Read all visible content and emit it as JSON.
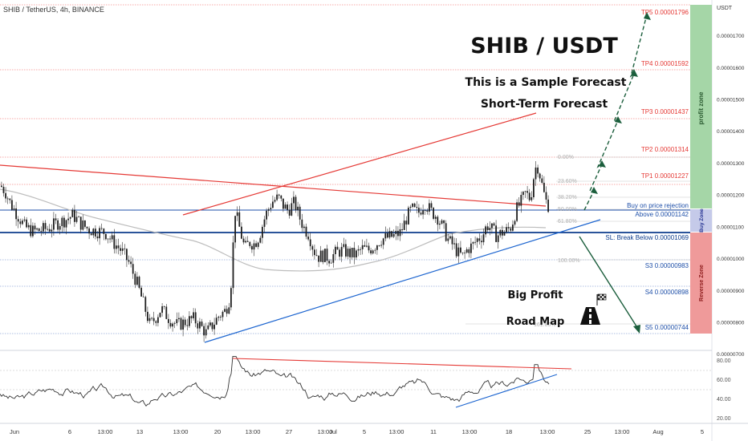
{
  "header": {
    "symbol_line": "SHIB / TetherUS, 4h, BINANCE"
  },
  "overlay": {
    "title": "SHIB / USDT",
    "line1": "This is a Sample Forecast",
    "line2": "Short-Term Forecast",
    "footer_line1": "Big Profit",
    "footer_line2": "Road Map"
  },
  "axis": {
    "unit_label": "USDT",
    "ticks": [
      "0.00001700",
      "0.00001600",
      "0.00001500",
      "0.00001400",
      "0.00001300",
      "0.00001200",
      "0.00001100",
      "0.00001000",
      "0.00000900",
      "0.00000800",
      "0.00000700"
    ],
    "x_ticks": [
      "Jun",
      "6",
      "13:00",
      "13",
      "13:00",
      "20",
      "13:00",
      "27",
      "13:00",
      "Jul",
      "5",
      "13:00",
      "11",
      "13:00",
      "18",
      "13:00",
      "25",
      "13:00",
      "Aug",
      "5"
    ]
  },
  "zones": {
    "profit": "profit zone",
    "buy": "Buy Zone",
    "reverse": "Reverse Zone"
  },
  "levels": {
    "tp5": "TP5 0.00001796",
    "tp4": "TP4 0.00001592",
    "tp3": "TP3 0.00001437",
    "tp2": "TP2 0.00001314",
    "tp1": "TP1 0.00001227",
    "buy1": "Buy on price rejection",
    "buy2": "Above 0.00001142",
    "sl": "SL: Break Below 0.00001069",
    "s3": "S3 0.00000983",
    "s4": "S4 0.00000898",
    "s5": "S5 0.00000744"
  },
  "fib": [
    "0.00%",
    "23.60%",
    "38.20%",
    "50.00%",
    "61.80%",
    "100.00%",
    "161.80%"
  ],
  "rsi_axis": [
    "80.00",
    "60.00",
    "40.00",
    "20.00"
  ],
  "colors": {
    "up": "#26a69a",
    "down": "#ef5350",
    "resistance": "#e53935",
    "support": "#1e66d0",
    "forecast": "#1b5e3c",
    "profit_zone": "#a5d6a7",
    "buy_zone": "#c5cae9",
    "reverse_zone": "#ef9a9a"
  },
  "chart_data": {
    "type": "candlestick",
    "y_scale": "linear",
    "ylim": [
      6.8e-06,
      1.81e-05
    ],
    "price_path": [
      [
        0,
        1.228e-05
      ],
      [
        6,
        1.208e-05
      ],
      [
        12,
        1.172e-05
      ],
      [
        20,
        1.14e-05
      ],
      [
        30,
        1.098e-05
      ],
      [
        40,
        1.085e-05
      ],
      [
        50,
        1.088e-05
      ],
      [
        60,
        1.095e-05
      ],
      [
        70,
        1.11e-05
      ],
      [
        80,
        1.12e-05
      ],
      [
        90,
        1.135e-05
      ],
      [
        100,
        1.108e-05
      ],
      [
        110,
        1.09e-05
      ],
      [
        120,
        1.085e-05
      ],
      [
        130,
        1.082e-05
      ],
      [
        140,
        1.05e-05
      ],
      [
        150,
        1.025e-05
      ],
      [
        160,
        9.85e-06
      ],
      [
        170,
        9.2e-06
      ],
      [
        180,
        8.4e-06
      ],
      [
        186,
        7.9e-06
      ],
      [
        192,
        8.1e-06
      ],
      [
        200,
        8.42e-06
      ],
      [
        210,
        8.1e-06
      ],
      [
        220,
        7.9e-06
      ],
      [
        230,
        8e-06
      ],
      [
        240,
        8.1e-06
      ],
      [
        248,
        7.9e-06
      ],
      [
        256,
        7.65e-06
      ],
      [
        264,
        7.9e-06
      ],
      [
        272,
        8.2e-06
      ],
      [
        280,
        8.35e-06
      ],
      [
        286,
        8.8e-06
      ],
      [
        292,
        1.15e-05
      ],
      [
        298,
        1.09e-05
      ],
      [
        304,
        1.03e-05
      ],
      [
        310,
        1.05e-05
      ],
      [
        316,
        1.045e-05
      ],
      [
        322,
        1.07e-05
      ],
      [
        330,
        1.135e-05
      ],
      [
        338,
        1.178e-05
      ],
      [
        346,
        1.19e-05
      ],
      [
        352,
        1.165e-05
      ],
      [
        358,
        1.15e-05
      ],
      [
        366,
        1.175e-05
      ],
      [
        372,
        1.13e-05
      ],
      [
        378,
        1.095e-05
      ],
      [
        384,
        1.075e-05
      ],
      [
        390,
        1.025e-05
      ],
      [
        396,
        1.005e-05
      ],
      [
        402,
        1.01e-05
      ],
      [
        410,
        1e-05
      ],
      [
        418,
        1.018e-05
      ],
      [
        426,
        1.025e-05
      ],
      [
        434,
        1.015e-05
      ],
      [
        442,
        1.01e-05
      ],
      [
        450,
        1.03e-05
      ],
      [
        458,
        1.025e-05
      ],
      [
        466,
        1.04e-05
      ],
      [
        474,
        1.06e-05
      ],
      [
        482,
        1.065e-05
      ],
      [
        490,
        1.07e-05
      ],
      [
        498,
        1.08e-05
      ],
      [
        506,
        1.128e-05
      ],
      [
        512,
        1.155e-05
      ],
      [
        520,
        1.14e-05
      ],
      [
        528,
        1.175e-05
      ],
      [
        536,
        1.148e-05
      ],
      [
        544,
        1.13e-05
      ],
      [
        552,
        1.09e-05
      ],
      [
        558,
        1.055e-05
      ],
      [
        564,
        1.04e-05
      ],
      [
        570,
        1.015e-05
      ],
      [
        576,
        1.005e-05
      ],
      [
        582,
        1.03e-05
      ],
      [
        588,
        1.04e-05
      ],
      [
        594,
        1.06e-05
      ],
      [
        600,
        1.07e-05
      ],
      [
        606,
        1.105e-05
      ],
      [
        612,
        1.09e-05
      ],
      [
        618,
        1.07e-05
      ],
      [
        624,
        1.08e-05
      ],
      [
        630,
        1.085e-05
      ],
      [
        636,
        1.1e-05
      ],
      [
        642,
        1.15e-05
      ],
      [
        648,
        1.175e-05
      ],
      [
        654,
        1.205e-05
      ],
      [
        660,
        1.185e-05
      ],
      [
        664,
        1.255e-05
      ],
      [
        668,
        1.3e-05
      ],
      [
        672,
        1.26e-05
      ],
      [
        676,
        1.21e-05
      ],
      [
        680,
        1.175e-05
      ],
      [
        684,
        1.16e-05
      ]
    ],
    "levels": [
      {
        "name": "TP5",
        "value": 1.796e-05
      },
      {
        "name": "TP4",
        "value": 1.592e-05
      },
      {
        "name": "TP3",
        "value": 1.437e-05
      },
      {
        "name": "TP2",
        "value": 1.314e-05
      },
      {
        "name": "TP1",
        "value": 1.227e-05
      },
      {
        "name": "Buy",
        "value": 1.142e-05
      },
      {
        "name": "SL",
        "value": 1.069e-05
      },
      {
        "name": "S3",
        "value": 9.83e-06
      },
      {
        "name": "S4",
        "value": 8.98e-06
      },
      {
        "name": "S5",
        "value": 7.44e-06
      }
    ],
    "rsi_ylim": [
      15,
      85
    ]
  }
}
